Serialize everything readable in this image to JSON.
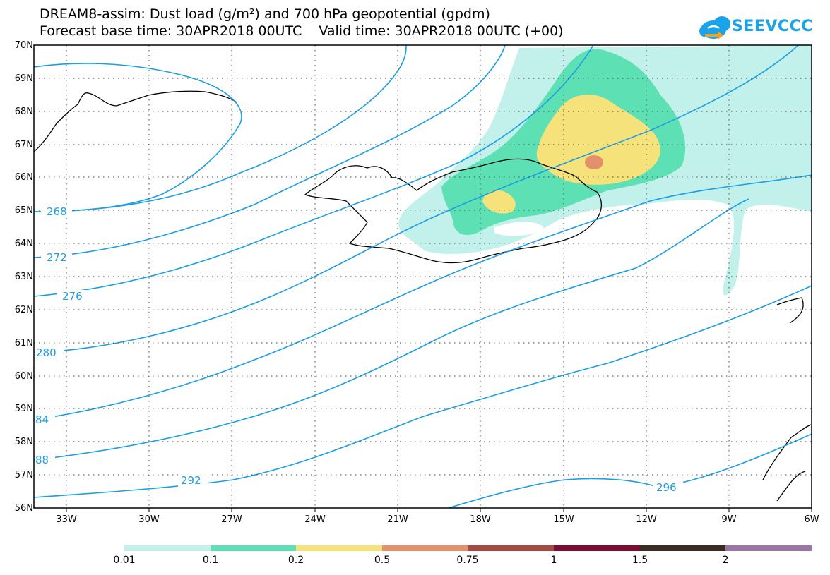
{
  "title": {
    "line1": "DREAM8-assim: Dust load (g/m²) and 700 hPa geopotential (gpdm)",
    "line2": "Forecast base time: 30APR2018 00UTC    Valid time: 30APR2018 00UTC (+00)"
  },
  "logo": {
    "text": "SEEVCCC"
  },
  "map": {
    "lat_labels": [
      "70N",
      "69N",
      "68N",
      "67N",
      "66N",
      "65N",
      "64N",
      "63N",
      "62N",
      "61N",
      "60N",
      "59N",
      "58N",
      "57N",
      "56N"
    ],
    "lon_labels": [
      "33W",
      "30W",
      "27W",
      "24W",
      "21W",
      "18W",
      "15W",
      "12W",
      "9W",
      "6W"
    ],
    "contour_labels": [
      "268",
      "272",
      "276",
      "280",
      "84",
      "88",
      "292",
      "296"
    ]
  },
  "colorbar": {
    "colors": [
      "#c2f0ea",
      "#5ee0b5",
      "#f6e27a",
      "#e4906a",
      "#a64a43",
      "#7c0b31",
      "#3a2c22",
      "#9a75a5"
    ],
    "labels": [
      "0.01",
      "0.1",
      "0.2",
      "0.5",
      "0.75",
      "1",
      "1.5",
      "2"
    ]
  }
}
